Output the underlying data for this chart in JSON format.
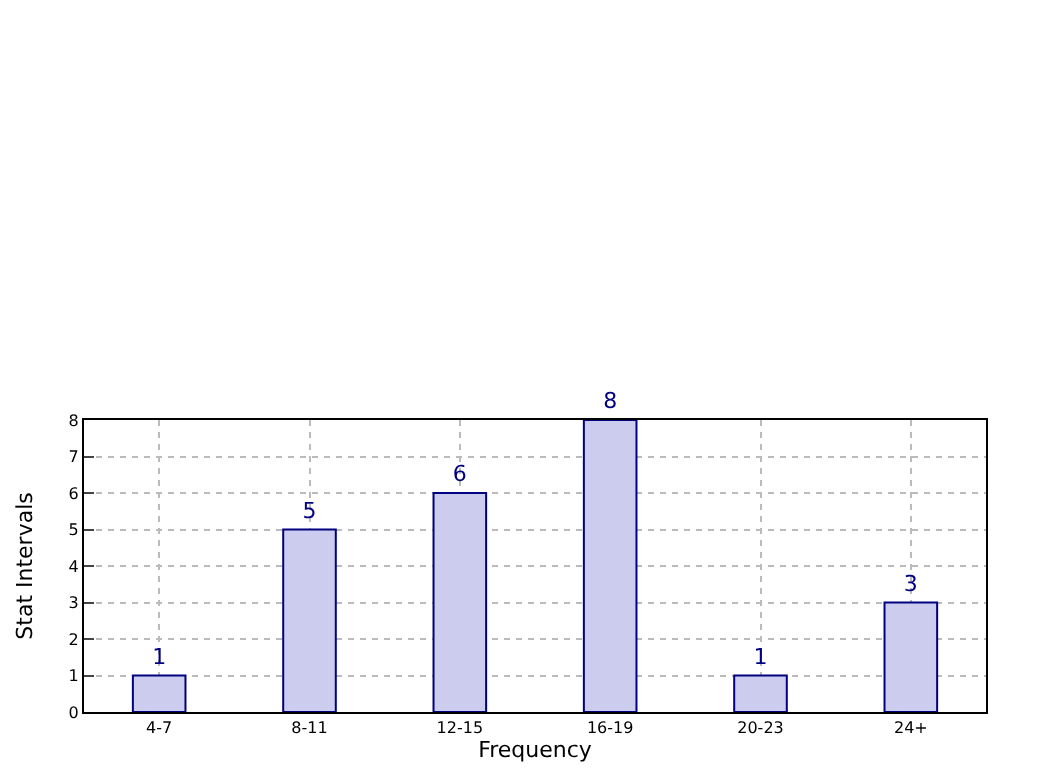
{
  "chart_data": {
    "type": "bar",
    "xlabel": "Frequency",
    "ylabel": "Stat Intervals",
    "categories": [
      "4-7",
      "8-11",
      "12-15",
      "16-19",
      "20-23",
      "24+"
    ],
    "values": [
      1,
      5,
      6,
      8,
      1,
      3
    ],
    "color": "#ccccee",
    "ylim": [
      0,
      8
    ],
    "yticks": [
      0,
      1,
      2,
      3,
      4,
      5,
      6,
      7,
      8
    ],
    "grid": true,
    "data_labels": true
  }
}
